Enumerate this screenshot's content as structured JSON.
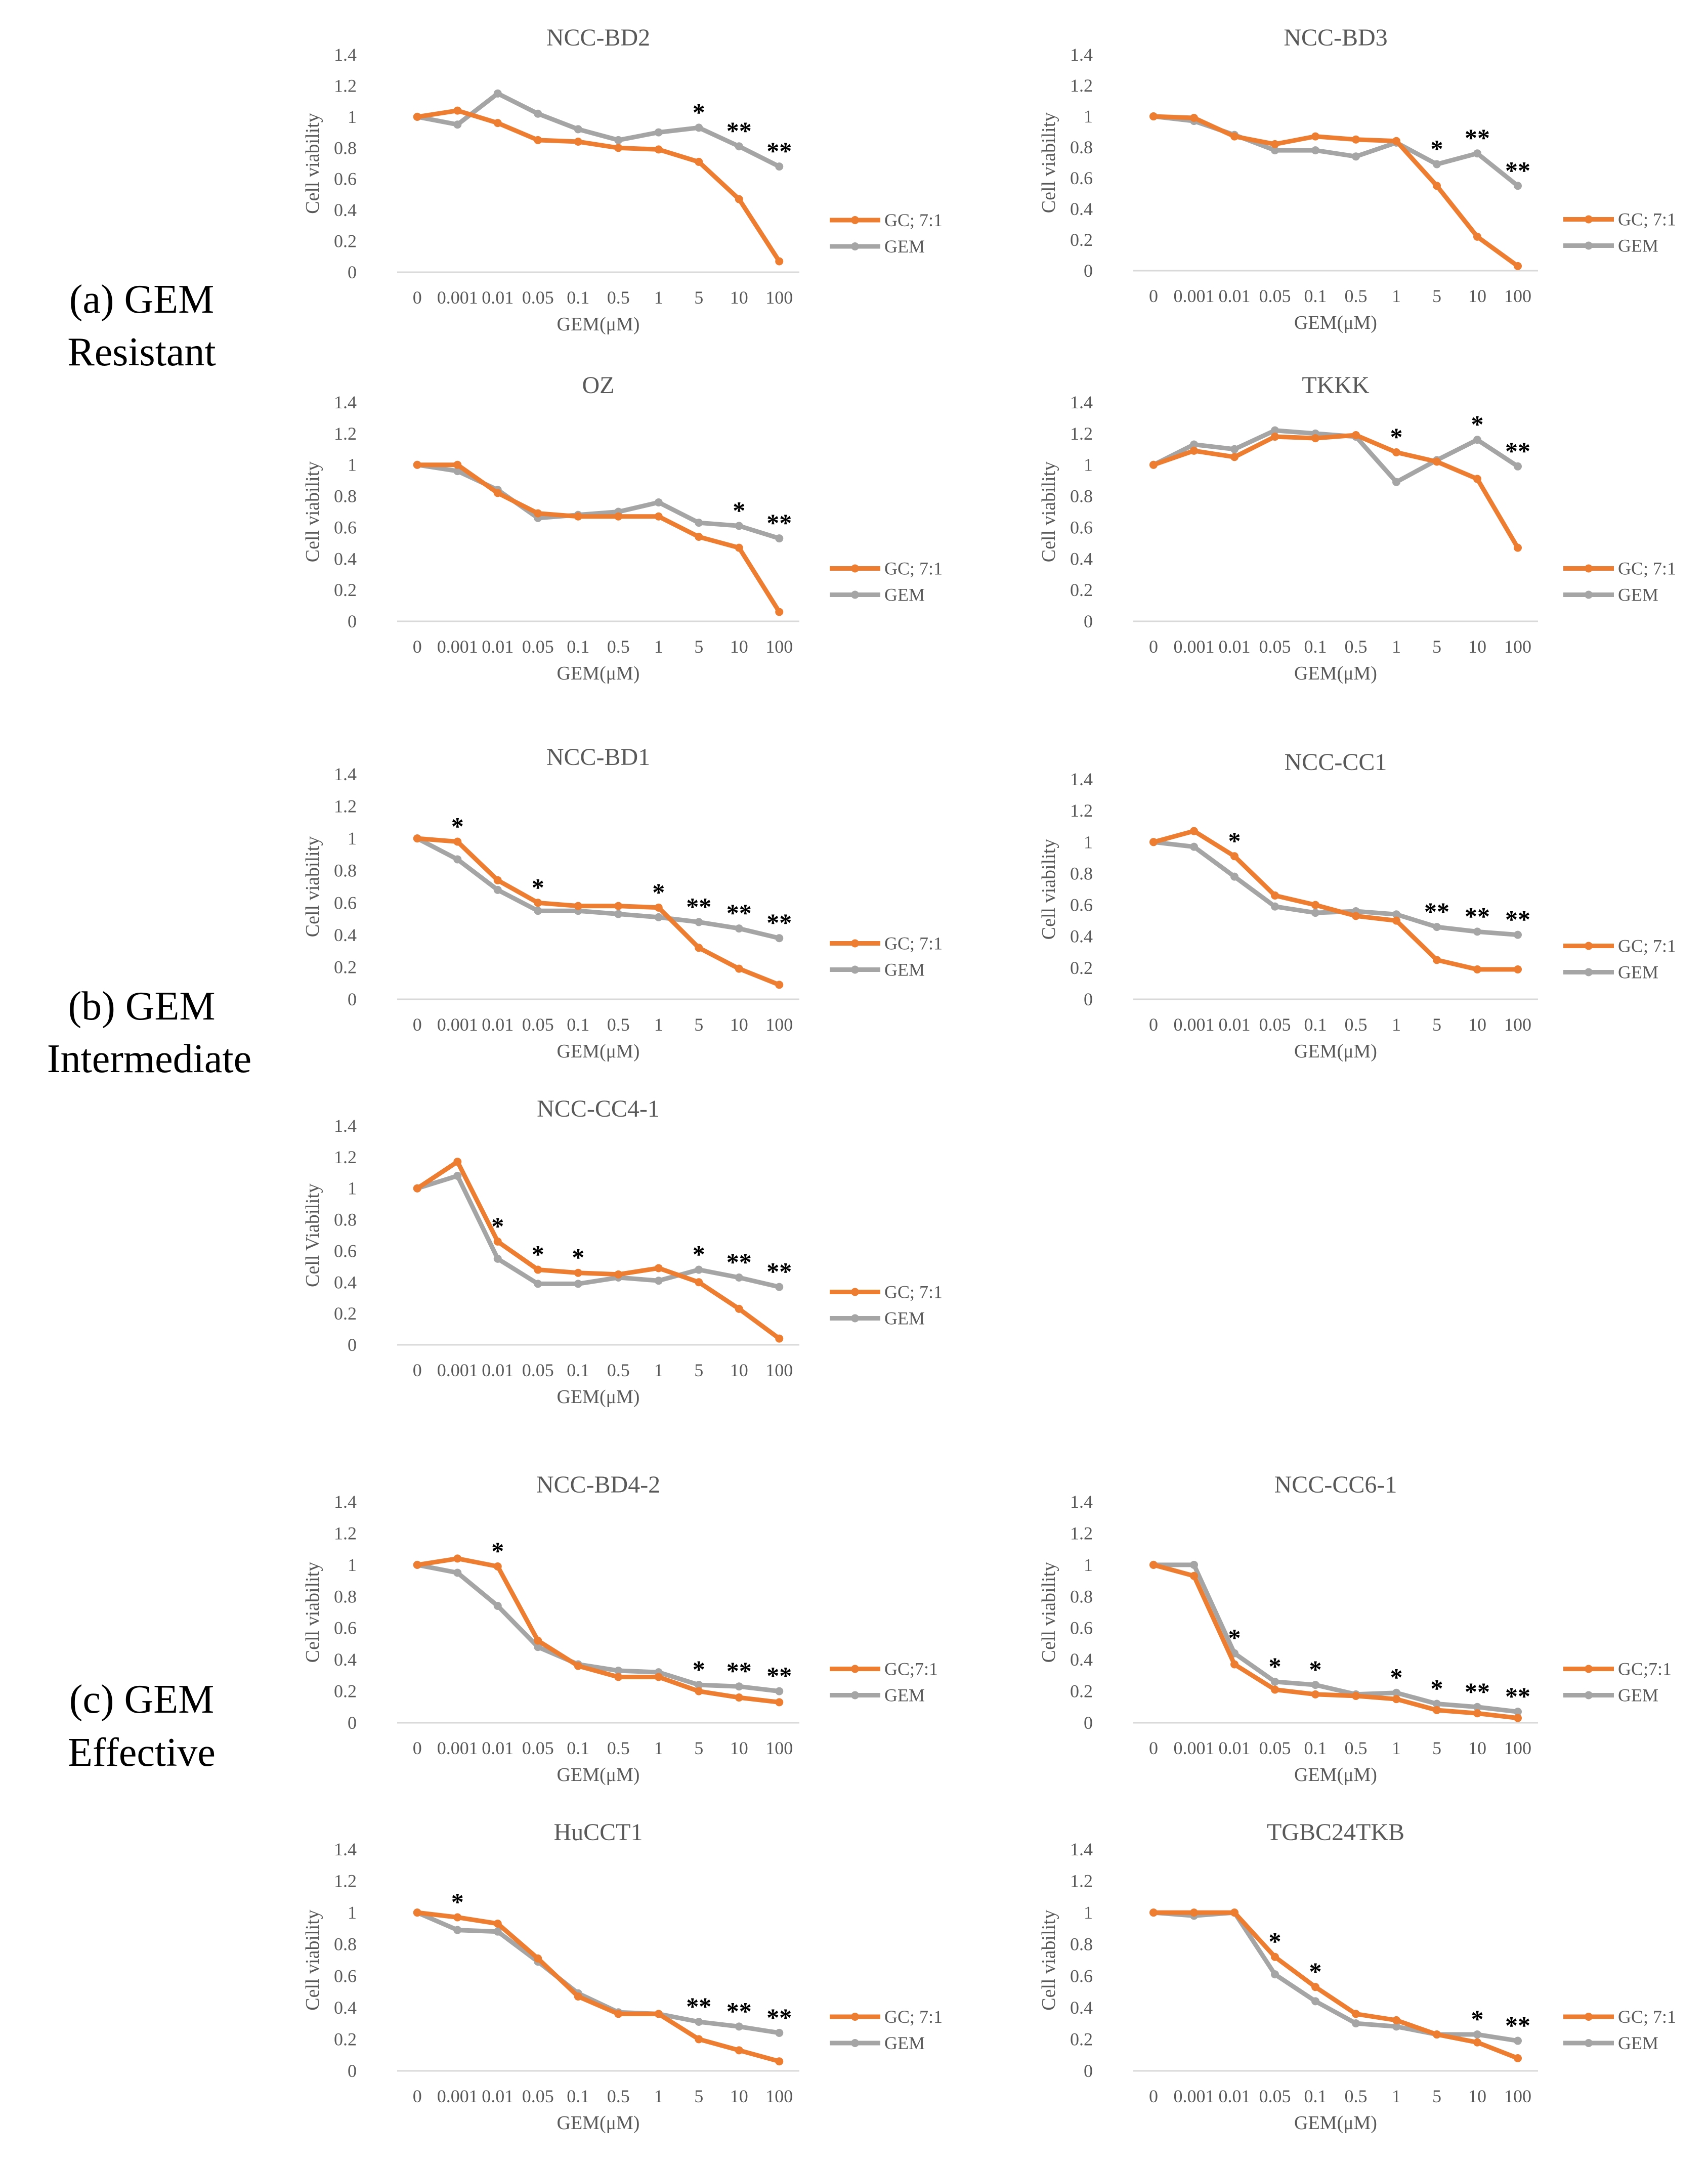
{
  "colors": {
    "gc": "#ED7D31",
    "gem": "#A5A5A5",
    "axis": "#D9D9D9",
    "text": "#595959"
  },
  "groups": [
    {
      "line1": "(a) GEM",
      "line2": "Resistant"
    },
    {
      "line1": "(b) GEM",
      "line2": "Intermediate"
    },
    {
      "line1": "(c) GEM",
      "line2": "Effective"
    }
  ],
  "chart_data": [
    {
      "type": "line",
      "title": "NCC-BD2",
      "categories": [
        "0",
        "0.001",
        "0.01",
        "0.05",
        "0.1",
        "0.5",
        "1",
        "5",
        "10",
        "100"
      ],
      "xlabel": "GEM(μM)",
      "ylabel": "Cell viability",
      "ylim": [
        0,
        1.4
      ],
      "yticks": [
        "0",
        "0.2",
        "0.4",
        "0.6",
        "0.8",
        "1",
        "1.2",
        "1.4"
      ],
      "series": [
        {
          "name": "GC; 7:1",
          "values": [
            1.0,
            1.04,
            0.96,
            0.85,
            0.84,
            0.8,
            0.79,
            0.71,
            0.47,
            0.07
          ]
        },
        {
          "name": "GEM",
          "values": [
            1.0,
            0.95,
            1.15,
            1.02,
            0.92,
            0.85,
            0.9,
            0.93,
            0.81,
            0.68
          ]
        }
      ],
      "significance": [
        "",
        "",
        "",
        "",
        "",
        "",
        "",
        "*",
        "**",
        "**"
      ]
    },
    {
      "type": "line",
      "title": "NCC-BD3",
      "categories": [
        "0",
        "0.001",
        "0.01",
        "0.05",
        "0.1",
        "0.5",
        "1",
        "5",
        "10",
        "100"
      ],
      "xlabel": "GEM(μM)",
      "ylabel": "Cell viability",
      "ylim": [
        0,
        1.4
      ],
      "yticks": [
        "0",
        "0.2",
        "0.4",
        "0.6",
        "0.8",
        "1",
        "1.2",
        "1.4"
      ],
      "series": [
        {
          "name": "GC; 7:1",
          "values": [
            1.0,
            0.99,
            0.87,
            0.82,
            0.87,
            0.85,
            0.84,
            0.55,
            0.22,
            0.03
          ]
        },
        {
          "name": "GEM",
          "values": [
            1.0,
            0.97,
            0.88,
            0.78,
            0.78,
            0.74,
            0.83,
            0.69,
            0.76,
            0.55
          ]
        }
      ],
      "significance": [
        "",
        "",
        "",
        "",
        "",
        "",
        "",
        "*",
        "**",
        "**"
      ]
    },
    {
      "type": "line",
      "title": "OZ",
      "categories": [
        "0",
        "0.001",
        "0.01",
        "0.05",
        "0.1",
        "0.5",
        "1",
        "5",
        "10",
        "100"
      ],
      "xlabel": "GEM(μM)",
      "ylabel": "Cell viability",
      "ylim": [
        0,
        1.4
      ],
      "yticks": [
        "0",
        "0.2",
        "0.4",
        "0.6",
        "0.8",
        "1",
        "1.2",
        "1.4"
      ],
      "series": [
        {
          "name": "GC; 7:1",
          "values": [
            1.0,
            1.0,
            0.82,
            0.69,
            0.67,
            0.67,
            0.67,
            0.54,
            0.47,
            0.06
          ]
        },
        {
          "name": "GEM",
          "values": [
            1.0,
            0.96,
            0.84,
            0.66,
            0.68,
            0.7,
            0.76,
            0.63,
            0.61,
            0.53
          ]
        }
      ],
      "significance": [
        "",
        "",
        "",
        "",
        "",
        "",
        "",
        "",
        "*",
        "**"
      ]
    },
    {
      "type": "line",
      "title": "TKKK",
      "categories": [
        "0",
        "0.001",
        "0.01",
        "0.05",
        "0.1",
        "0.5",
        "1",
        "5",
        "10",
        "100"
      ],
      "xlabel": "GEM(μM)",
      "ylabel": "Cell viability",
      "ylim": [
        0,
        1.4
      ],
      "yticks": [
        "0",
        "0.2",
        "0.4",
        "0.6",
        "0.8",
        "1",
        "1.2",
        "1.4"
      ],
      "series": [
        {
          "name": "GC; 7:1",
          "values": [
            1.0,
            1.09,
            1.05,
            1.18,
            1.17,
            1.19,
            1.08,
            1.02,
            0.91,
            0.47
          ]
        },
        {
          "name": "GEM",
          "values": [
            1.0,
            1.13,
            1.1,
            1.22,
            1.2,
            1.18,
            0.89,
            1.03,
            1.16,
            0.99
          ]
        }
      ],
      "significance": [
        "",
        "",
        "",
        "",
        "",
        "",
        "*",
        "",
        "*",
        "**"
      ]
    },
    {
      "type": "line",
      "title": "NCC-BD1",
      "categories": [
        "0",
        "0.001",
        "0.01",
        "0.05",
        "0.1",
        "0.5",
        "1",
        "5",
        "10",
        "100"
      ],
      "xlabel": "GEM(μM)",
      "ylabel": "Cell viability",
      "ylim": [
        0,
        1.4
      ],
      "yticks": [
        "0",
        "0.2",
        "0.4",
        "0.6",
        "0.8",
        "1",
        "1.2",
        "1.4"
      ],
      "series": [
        {
          "name": "GC; 7:1",
          "values": [
            1.0,
            0.98,
            0.74,
            0.6,
            0.58,
            0.58,
            0.57,
            0.32,
            0.19,
            0.09
          ]
        },
        {
          "name": "GEM",
          "values": [
            1.0,
            0.87,
            0.68,
            0.55,
            0.55,
            0.53,
            0.51,
            0.48,
            0.44,
            0.38
          ]
        }
      ],
      "significance": [
        "",
        "*",
        "",
        "*",
        "",
        "",
        "*",
        "**",
        "**",
        "**"
      ]
    },
    {
      "type": "line",
      "title": "NCC-CC1",
      "categories": [
        "0",
        "0.001",
        "0.01",
        "0.05",
        "0.1",
        "0.5",
        "1",
        "5",
        "10",
        "100"
      ],
      "xlabel": "GEM(μM)",
      "ylabel": "Cell viability",
      "ylim": [
        0,
        1.4
      ],
      "yticks": [
        "0",
        "0.2",
        "0.4",
        "0.6",
        "0.8",
        "1",
        "1.2",
        "1.4"
      ],
      "series": [
        {
          "name": "GC; 7:1",
          "values": [
            1.0,
            1.07,
            0.91,
            0.66,
            0.6,
            0.53,
            0.5,
            0.25,
            0.19,
            0.19
          ]
        },
        {
          "name": "GEM",
          "values": [
            1.0,
            0.97,
            0.78,
            0.59,
            0.55,
            0.56,
            0.54,
            0.46,
            0.43,
            0.41
          ]
        }
      ],
      "significance": [
        "",
        "",
        "*",
        "",
        "",
        "",
        "",
        "**",
        "**",
        "**"
      ]
    },
    {
      "type": "line",
      "title": "NCC-CC4-1",
      "categories": [
        "0",
        "0.001",
        "0.01",
        "0.05",
        "0.1",
        "0.5",
        "1",
        "5",
        "10",
        "100"
      ],
      "xlabel": "GEM(μM)",
      "ylabel": "Cell Viability",
      "ylim": [
        0,
        1.4
      ],
      "yticks": [
        "0",
        "0.2",
        "0.4",
        "0.6",
        "0.8",
        "1",
        "1.2",
        "1.4"
      ],
      "series": [
        {
          "name": "GC; 7:1",
          "values": [
            1.0,
            1.17,
            0.66,
            0.48,
            0.46,
            0.45,
            0.49,
            0.4,
            0.23,
            0.04
          ]
        },
        {
          "name": "GEM",
          "values": [
            1.0,
            1.08,
            0.55,
            0.39,
            0.39,
            0.43,
            0.41,
            0.48,
            0.43,
            0.37
          ]
        }
      ],
      "significance": [
        "",
        "",
        "*",
        "*",
        "*",
        "",
        "",
        "*",
        "**",
        "**"
      ]
    },
    {
      "type": "line",
      "title": "NCC-BD4-2",
      "categories": [
        "0",
        "0.001",
        "0.01",
        "0.05",
        "0.1",
        "0.5",
        "1",
        "5",
        "10",
        "100"
      ],
      "xlabel": "GEM(μM)",
      "ylabel": "Cell viability",
      "ylim": [
        0,
        1.4
      ],
      "yticks": [
        "0",
        "0.2",
        "0.4",
        "0.6",
        "0.8",
        "1",
        "1.2",
        "1.4"
      ],
      "series": [
        {
          "name": "GC;7:1",
          "values": [
            1.0,
            1.04,
            0.99,
            0.52,
            0.36,
            0.29,
            0.29,
            0.2,
            0.16,
            0.13
          ]
        },
        {
          "name": "GEM",
          "values": [
            1.0,
            0.95,
            0.74,
            0.48,
            0.37,
            0.33,
            0.32,
            0.24,
            0.23,
            0.2
          ]
        }
      ],
      "significance": [
        "",
        "",
        "*",
        "",
        "",
        "",
        "",
        "*",
        "**",
        "**"
      ]
    },
    {
      "type": "line",
      "title": "NCC-CC6-1",
      "categories": [
        "0",
        "0.001",
        "0.01",
        "0.05",
        "0.1",
        "0.5",
        "1",
        "5",
        "10",
        "100"
      ],
      "xlabel": "GEM(μM)",
      "ylabel": "Cell viability",
      "ylim": [
        0,
        1.4
      ],
      "yticks": [
        "0",
        "0.2",
        "0.4",
        "0.6",
        "0.8",
        "1",
        "1.2",
        "1.4"
      ],
      "series": [
        {
          "name": "GC;7:1",
          "values": [
            1.0,
            0.93,
            0.37,
            0.21,
            0.18,
            0.17,
            0.15,
            0.08,
            0.06,
            0.03
          ]
        },
        {
          "name": "GEM",
          "values": [
            1.0,
            1.0,
            0.44,
            0.26,
            0.24,
            0.18,
            0.19,
            0.12,
            0.1,
            0.07
          ]
        }
      ],
      "significance": [
        "",
        "",
        "*",
        "*",
        "*",
        "",
        "*",
        "*",
        "**",
        "**"
      ]
    },
    {
      "type": "line",
      "title": "HuCCT1",
      "categories": [
        "0",
        "0.001",
        "0.01",
        "0.05",
        "0.1",
        "0.5",
        "1",
        "5",
        "10",
        "100"
      ],
      "xlabel": "GEM(μM)",
      "ylabel": "Cell viability",
      "ylim": [
        0,
        1.4
      ],
      "yticks": [
        "0",
        "0.2",
        "0.4",
        "0.6",
        "0.8",
        "1",
        "1.2",
        "1.4"
      ],
      "series": [
        {
          "name": "GC; 7:1",
          "values": [
            1.0,
            0.97,
            0.93,
            0.71,
            0.47,
            0.36,
            0.36,
            0.2,
            0.13,
            0.06
          ]
        },
        {
          "name": "GEM",
          "values": [
            1.0,
            0.89,
            0.88,
            0.69,
            0.49,
            0.37,
            0.36,
            0.31,
            0.28,
            0.24
          ]
        }
      ],
      "significance": [
        "",
        "*",
        "",
        "",
        "",
        "",
        "",
        "**",
        "**",
        "**"
      ]
    },
    {
      "type": "line",
      "title": "TGBC24TKB",
      "categories": [
        "0",
        "0.001",
        "0.01",
        "0.05",
        "0.1",
        "0.5",
        "1",
        "5",
        "10",
        "100"
      ],
      "xlabel": "GEM(μM)",
      "ylabel": "Cell viability",
      "ylim": [
        0,
        1.4
      ],
      "yticks": [
        "0",
        "0.2",
        "0.4",
        "0.6",
        "0.8",
        "1",
        "1.2",
        "1.4"
      ],
      "series": [
        {
          "name": "GC; 7:1",
          "values": [
            1.0,
            1.0,
            1.0,
            0.72,
            0.53,
            0.36,
            0.32,
            0.23,
            0.18,
            0.08
          ]
        },
        {
          "name": "GEM",
          "values": [
            1.0,
            0.98,
            1.0,
            0.61,
            0.44,
            0.3,
            0.28,
            0.23,
            0.23,
            0.19
          ]
        }
      ],
      "significance": [
        "",
        "",
        "",
        "*",
        "*",
        "",
        "",
        "",
        "*",
        "**"
      ]
    }
  ]
}
